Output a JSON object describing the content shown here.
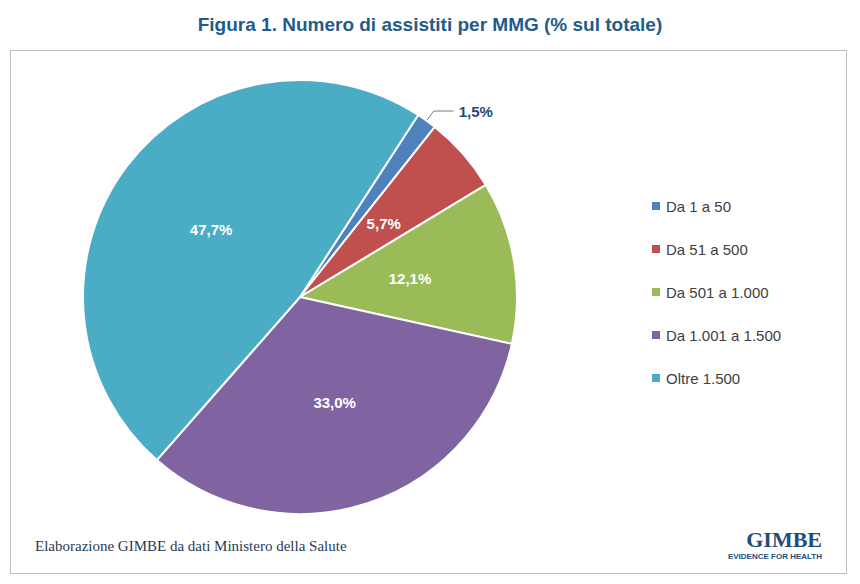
{
  "chart_data": {
    "type": "pie",
    "title": "Figura 1. Numero di assistiti per MMG (% sul totale)",
    "categories": [
      "Da 1 a 50",
      "Da 51 a 500",
      "Da 501 a 1.000",
      "Da 1.001 a 1.500",
      "Oltre 1.500"
    ],
    "values": [
      1.5,
      5.7,
      12.1,
      33.0,
      47.7
    ],
    "value_labels": [
      "1,5%",
      "5,7%",
      "12,1%",
      "33,0%",
      "47,7%"
    ],
    "colors": [
      "#4f81bd",
      "#c0504d",
      "#9bbb59",
      "#8064a2",
      "#4bacc6"
    ],
    "data_labels": true,
    "legend": "right",
    "source": "Elaborazione GIMBE da dati Ministero della Salute",
    "logo": {
      "text": "GIMBE",
      "subtext": "EVIDENCE FOR HEALTH"
    }
  }
}
